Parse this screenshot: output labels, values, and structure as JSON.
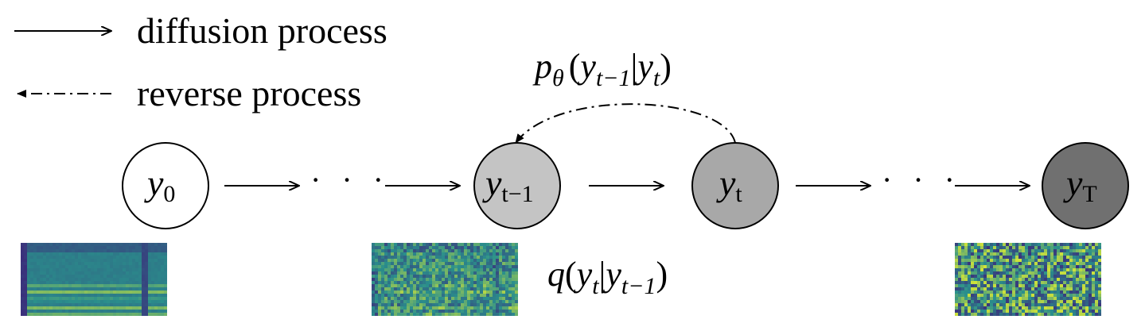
{
  "legend": {
    "diffusion_label": "diffusion process",
    "reverse_label": "reverse process"
  },
  "nodes": [
    {
      "id": "y0",
      "base": "y",
      "sub": "0",
      "fill": "#ffffff"
    },
    {
      "id": "yt-1",
      "base": "y",
      "sub": "t−1",
      "fill": "#c4c4c4"
    },
    {
      "id": "yt",
      "base": "y",
      "sub": "t",
      "fill": "#a8a8a8"
    },
    {
      "id": "yT",
      "base": "y",
      "sub": "T",
      "fill": "#707070"
    }
  ],
  "ellipsis": "· · ·",
  "reverse_formula": {
    "p": "p",
    "theta": "θ",
    "open": "(",
    "y1": "y",
    "sub1": "t−1",
    "bar": "|",
    "y2": "y",
    "sub2": "t",
    "close": ")"
  },
  "forward_formula": {
    "q": "q",
    "open": "(",
    "y1": "y",
    "sub1": "t",
    "bar": "|",
    "y2": "y",
    "sub2": "t−1",
    "close": ")"
  },
  "spectrograms": [
    {
      "name": "clean-spectrogram",
      "noise_level": 0.0
    },
    {
      "name": "partially-noised-spectrogram",
      "noise_level": 0.55
    },
    {
      "name": "noise-spectrogram",
      "noise_level": 1.0
    }
  ],
  "colors": {
    "stroke": "#000000",
    "spectrogram_low": "#3b2a7a",
    "spectrogram_mid": "#2a8f8c",
    "spectrogram_high": "#cfe23a"
  }
}
